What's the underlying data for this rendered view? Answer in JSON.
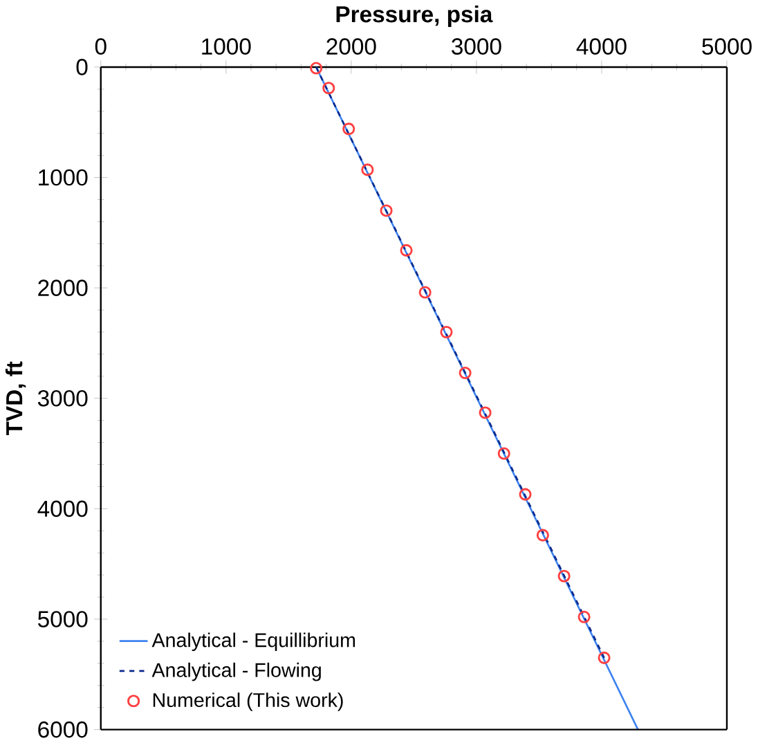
{
  "chart_data": {
    "type": "line",
    "xlabel": "Pressure, psia",
    "ylabel": "TVD, ft",
    "xlim": [
      0,
      5000
    ],
    "xticks": [
      0,
      1000,
      2000,
      3000,
      4000,
      5000
    ],
    "ylim": [
      6000,
      0
    ],
    "yticks": [
      0,
      1000,
      2000,
      3000,
      4000,
      5000,
      6000
    ],
    "legend": "bottom left",
    "grid": false,
    "series": [
      {
        "name": "Analytical - Equillibrium",
        "color": "#3c82f0",
        "line_style": "solid",
        "marker": "none",
        "x": [
          1720,
          4290
        ],
        "values": [
          0,
          6000
        ]
      },
      {
        "name": "Analytical - Flowing",
        "color": "#0a2a8c",
        "line_style": "dashed",
        "marker": "none",
        "x": [
          1720,
          4020
        ],
        "values": [
          0,
          5350
        ]
      },
      {
        "name": "Numerical (This work)",
        "color": "#ff4040",
        "type": "scatter",
        "marker": "circle",
        "x": [
          1720,
          1820,
          1980,
          2130,
          2280,
          2440,
          2590,
          2760,
          2910,
          3070,
          3220,
          3390,
          3530,
          3700,
          3860,
          4020
        ],
        "values": [
          10,
          190,
          560,
          930,
          1300,
          1660,
          2040,
          2400,
          2770,
          3130,
          3500,
          3870,
          4240,
          4610,
          4980,
          5350
        ]
      }
    ]
  }
}
